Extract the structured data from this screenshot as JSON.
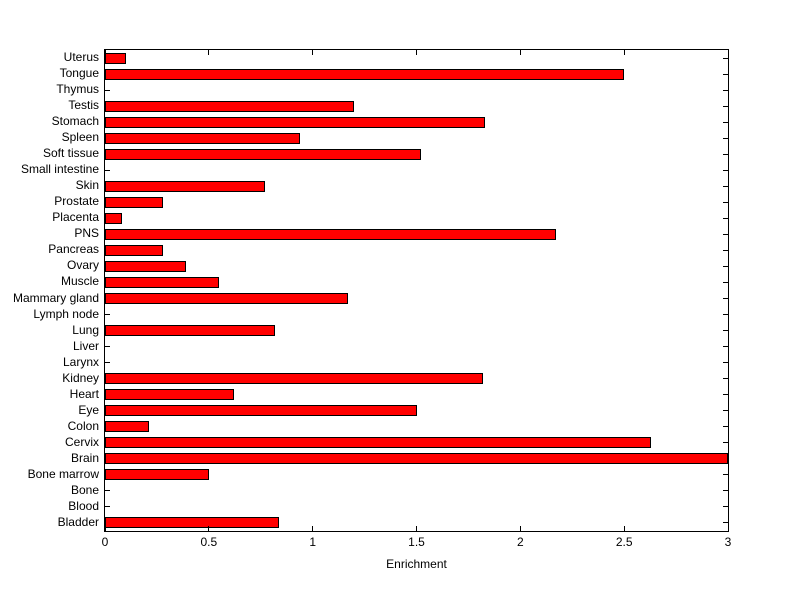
{
  "chart_data": {
    "type": "bar",
    "orientation": "horizontal",
    "title": "",
    "xlabel": "Enrichment",
    "ylabel": "",
    "xlim": [
      0,
      3
    ],
    "xticks": [
      0,
      0.5,
      1,
      1.5,
      2,
      2.5,
      3
    ],
    "xtick_labels": [
      "0",
      "0.5",
      "1",
      "1.5",
      "2",
      "2.5",
      "3"
    ],
    "grid": false,
    "legend": null,
    "bar_color": "#ff0000",
    "bar_edge_color": "#000000",
    "axis_color": "#000000",
    "background_color": "#ffffff",
    "categories": [
      "Uterus",
      "Tongue",
      "Thymus",
      "Testis",
      "Stomach",
      "Spleen",
      "Soft tissue",
      "Small intestine",
      "Skin",
      "Prostate",
      "Placenta",
      "PNS",
      "Pancreas",
      "Ovary",
      "Muscle",
      "Mammary gland",
      "Lymph node",
      "Lung",
      "Liver",
      "Larynx",
      "Kidney",
      "Heart",
      "Eye",
      "Colon",
      "Cervix",
      "Brain",
      "Bone marrow",
      "Bone",
      "Blood",
      "Bladder"
    ],
    "values": [
      0.1,
      2.5,
      0,
      1.2,
      1.83,
      0.94,
      1.52,
      0,
      0.77,
      0.28,
      0.08,
      2.17,
      0.28,
      0.39,
      0.55,
      1.17,
      0,
      0.82,
      0,
      0,
      1.82,
      0.62,
      1.5,
      0.21,
      2.63,
      3.0,
      0.5,
      0,
      0,
      0.84
    ]
  }
}
